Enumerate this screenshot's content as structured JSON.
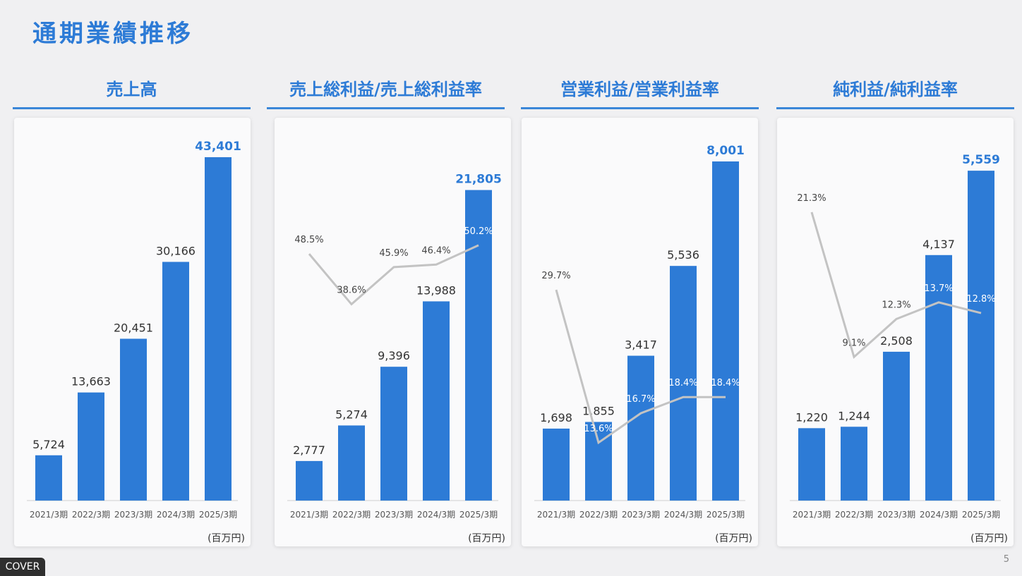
{
  "page_title": "通期業績推移",
  "unit": "(百万円)",
  "cover_badge": "COVER",
  "page_number": "5",
  "colors": {
    "bar": "#2d7bd6",
    "title": "#2d7bd6",
    "rate_line": "#c3c3c3"
  },
  "chart_data": [
    {
      "type": "bar",
      "title": "売上高",
      "categories": [
        "2021/3期",
        "2022/3期",
        "2023/3期",
        "2024/3期",
        "2025/3期"
      ],
      "values": [
        5724,
        13663,
        20451,
        30166,
        43401
      ],
      "value_labels": [
        "5,724",
        "13,663",
        "20,451",
        "30,166",
        "43,401"
      ],
      "ylim": [
        0,
        45000
      ],
      "grid": false
    },
    {
      "type": "bar",
      "title": "売上総利益/売上総利益率",
      "categories": [
        "2021/3期",
        "2022/3期",
        "2023/3期",
        "2024/3期",
        "2025/3期"
      ],
      "values": [
        2777,
        5274,
        9396,
        13988,
        21805
      ],
      "value_labels": [
        "2,777",
        "5,274",
        "9,396",
        "13,988",
        "21,805"
      ],
      "ylim": [
        0,
        25000
      ],
      "rate_values": [
        48.5,
        38.6,
        45.9,
        46.4,
        50.2
      ],
      "rate_labels": [
        "48.5%",
        "38.6%",
        "45.9%",
        "46.4%",
        "50.2%"
      ],
      "rate_ylim": [
        0,
        70
      ],
      "grid": false
    },
    {
      "type": "bar",
      "title": "営業利益/営業利益率",
      "categories": [
        "2021/3期",
        "2022/3期",
        "2023/3期",
        "2024/3期",
        "2025/3期"
      ],
      "values": [
        1698,
        1855,
        3417,
        5536,
        8001
      ],
      "value_labels": [
        "1,698",
        "1,855",
        "3,417",
        "5,536",
        "8,001"
      ],
      "ylim": [
        0,
        8400
      ],
      "rate_values": [
        29.7,
        13.6,
        16.7,
        18.4,
        18.4
      ],
      "rate_labels": [
        "29.7%",
        "13.6%",
        "16.7%",
        "18.4%",
        "18.4%"
      ],
      "rate_ylim": [
        7.5,
        45
      ],
      "grid": false
    },
    {
      "type": "bar",
      "title": "純利益/純利益率",
      "categories": [
        "2021/3期",
        "2022/3期",
        "2023/3期",
        "2024/3期",
        "2025/3期"
      ],
      "values": [
        1220,
        1244,
        2508,
        4137,
        5559
      ],
      "value_labels": [
        "1,220",
        "1,244",
        "2,508",
        "4,137",
        "5,559"
      ],
      "ylim": [
        0,
        6000
      ],
      "rate_values": [
        21.3,
        9.1,
        12.3,
        13.7,
        12.8
      ],
      "rate_labels": [
        "21.3%",
        "9.1%",
        "12.3%",
        "13.7%",
        "12.8%"
      ],
      "rate_ylim": [
        -3,
        27
      ],
      "grid": false
    }
  ]
}
